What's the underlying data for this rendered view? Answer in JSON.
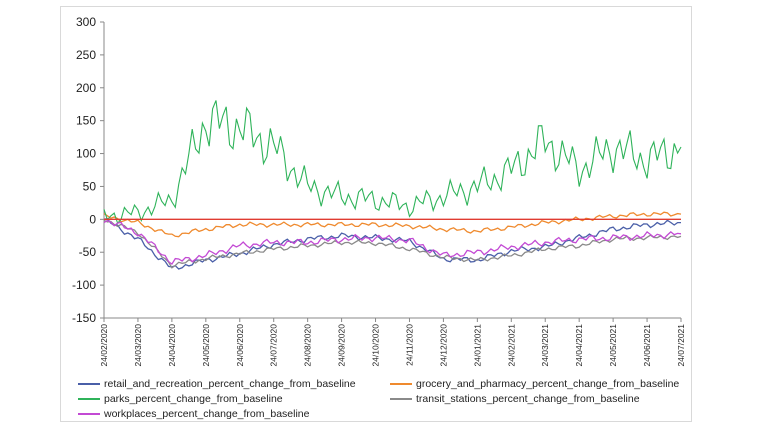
{
  "chart_data": {
    "type": "line",
    "title": "",
    "xlabel": "",
    "ylabel": "",
    "ylim": [
      -150,
      300
    ],
    "yticks": [
      300,
      250,
      200,
      150,
      100,
      50,
      0,
      -50,
      -100,
      -150
    ],
    "ytick_labels": [
      "300",
      "250",
      "200",
      "150",
      "100",
      "50",
      "0",
      "-50",
      "-100",
      "-150"
    ],
    "x_labels": [
      "24/02/2020",
      "24/03/2020",
      "24/04/2020",
      "24/05/2020",
      "24/06/2020",
      "24/07/2020",
      "24/08/2020",
      "24/09/2020",
      "24/10/2020",
      "24/11/2020",
      "24/12/2020",
      "24/01/2021",
      "24/02/2021",
      "24/03/2021",
      "24/04/2021",
      "24/05/2021",
      "24/06/2021",
      "24/07/2021"
    ],
    "x": [
      "2020-02",
      "2020-03",
      "2020-04",
      "2020-05",
      "2020-06",
      "2020-07",
      "2020-08",
      "2020-09",
      "2020-10",
      "2020-11",
      "2020-12",
      "2021-01",
      "2021-02",
      "2021-03",
      "2021-04",
      "2021-05",
      "2021-06",
      "2021-07"
    ],
    "baseline": 0,
    "baseline_color": "#e03c31",
    "series": [
      {
        "name": "retail_and_recreation_percent_change_from_baseline",
        "color": "#4a5fa8",
        "values": [
          0,
          -30,
          -75,
          -62,
          -52,
          -38,
          -30,
          -25,
          -28,
          -33,
          -60,
          -62,
          -48,
          -42,
          -28,
          -15,
          -8,
          -5
        ]
      },
      {
        "name": "grocery_and_pharmacy_percent_change_from_baseline",
        "color": "#ef8a2e",
        "values": [
          5,
          -5,
          -25,
          -15,
          -8,
          -8,
          -8,
          -8,
          -8,
          -10,
          -15,
          -18,
          -12,
          -5,
          0,
          5,
          8,
          8
        ]
      },
      {
        "name": "parks_percent_change_from_baseline",
        "color": "#2fb35a",
        "values": [
          5,
          10,
          30,
          150,
          140,
          110,
          50,
          35,
          30,
          20,
          35,
          50,
          75,
          120,
          75,
          110,
          90,
          110
        ]
      },
      {
        "name": "transit_stations_percent_change_from_baseline",
        "color": "#8a8a8a",
        "values": [
          0,
          -20,
          -70,
          -60,
          -52,
          -45,
          -40,
          -35,
          -36,
          -45,
          -58,
          -62,
          -55,
          -45,
          -40,
          -30,
          -28,
          -26
        ]
      },
      {
        "name": "workplaces_percent_change_from_baseline",
        "color": "#c34ad4",
        "values": [
          0,
          -20,
          -65,
          -55,
          -40,
          -35,
          -35,
          -30,
          -28,
          -32,
          -55,
          -50,
          -42,
          -35,
          -30,
          -28,
          -25,
          -22
        ]
      }
    ]
  }
}
